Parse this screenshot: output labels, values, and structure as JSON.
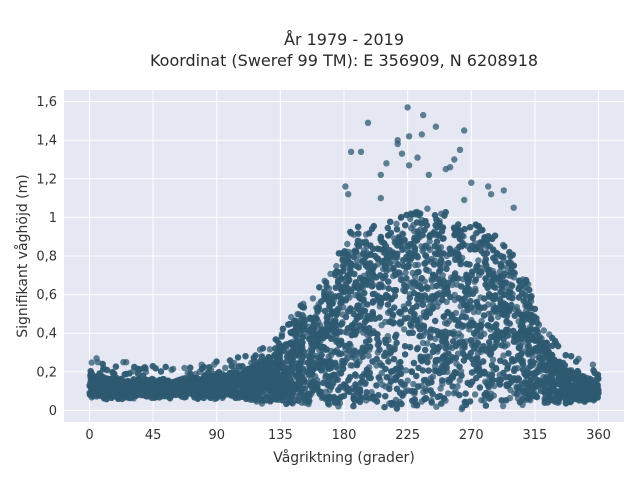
{
  "chart_data": {
    "type": "scatter",
    "title": "År 1979 - 2019",
    "subtitle": "Koordinat (Sweref 99 TM): E 356909, N 6208918",
    "xlabel": "Vågriktning (grader)",
    "ylabel": "Signifikant våghöjd (m)",
    "xlim": [
      -18,
      378
    ],
    "ylim": [
      -0.06,
      1.66
    ],
    "x_ticks": [
      0,
      45,
      90,
      135,
      180,
      225,
      270,
      315,
      360
    ],
    "x_tick_labels": [
      "0",
      "45",
      "90",
      "135",
      "180",
      "225",
      "270",
      "315",
      "360"
    ],
    "y_ticks": [
      0,
      0.2,
      0.4,
      0.6,
      0.8,
      1.0,
      1.2,
      1.4,
      1.6
    ],
    "y_tick_labels": [
      "0",
      "0,2",
      "0,4",
      "0,6",
      "0,8",
      "1",
      "1,2",
      "1,4",
      "1,6"
    ],
    "grid": true,
    "legend": "none",
    "marker_color": "#2e5a72",
    "background_color": "#e5e7f2",
    "upper_envelope": {
      "x": [
        0,
        20,
        45,
        60,
        90,
        110,
        125,
        135,
        145,
        155,
        165,
        175,
        185,
        200,
        215,
        230,
        245,
        260,
        275,
        290,
        300,
        310,
        318,
        325,
        335,
        345,
        355,
        360
      ],
      "y": [
        0.18,
        0.15,
        0.15,
        0.15,
        0.18,
        0.2,
        0.26,
        0.33,
        0.43,
        0.51,
        0.58,
        0.73,
        0.86,
        0.9,
        0.92,
        0.96,
        0.98,
        0.93,
        0.88,
        0.82,
        0.72,
        0.58,
        0.45,
        0.32,
        0.24,
        0.19,
        0.16,
        0.16
      ]
    },
    "lower_envelope": {
      "x": [
        0,
        45,
        90,
        135,
        180,
        225,
        270,
        315,
        360
      ],
      "y": [
        0.07,
        0.07,
        0.07,
        0.04,
        0.02,
        0.02,
        0.02,
        0.03,
        0.06
      ]
    },
    "outliers": {
      "x": [
        225,
        236,
        245,
        218,
        218,
        262,
        258,
        197,
        221,
        235,
        265,
        252,
        210,
        185,
        192,
        240,
        282,
        284,
        293,
        232,
        226,
        206,
        270,
        265,
        300,
        206,
        181,
        183,
        226,
        255,
        5,
        6,
        24,
        26,
        78,
        102,
        10,
        40,
        58,
        96,
        118,
        124
      ],
      "y": [
        1.57,
        1.53,
        1.47,
        1.4,
        1.38,
        1.35,
        1.3,
        1.49,
        1.33,
        1.43,
        1.45,
        1.25,
        1.28,
        1.34,
        1.34,
        1.22,
        1.16,
        1.12,
        1.14,
        1.31,
        1.27,
        1.22,
        1.18,
        1.09,
        1.05,
        1.1,
        1.16,
        1.12,
        1.42,
        1.26,
        0.27,
        0.25,
        0.25,
        0.25,
        0.2,
        0.22,
        0.22,
        0.2,
        0.21,
        0.22,
        0.25,
        0.24
      ]
    }
  }
}
